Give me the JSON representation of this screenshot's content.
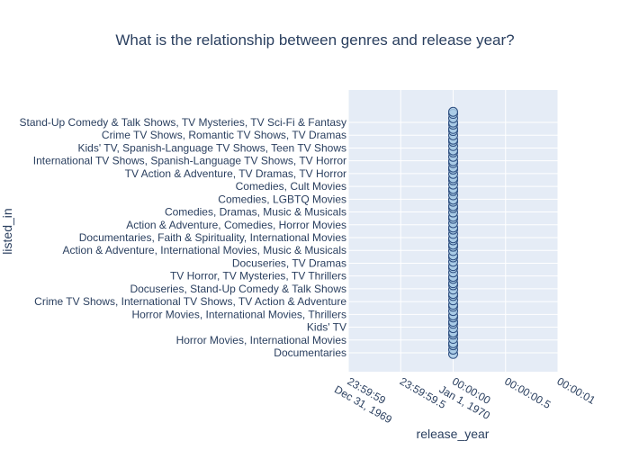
{
  "chart_data": {
    "type": "scatter",
    "title": "What is the relationship between genres and release year?",
    "xlabel": "release_year",
    "ylabel": "listed_in",
    "x_ticks": [
      {
        "value": -1,
        "line1": "23:59:59",
        "line2": "Dec 31, 1969"
      },
      {
        "value": -0.5,
        "line1": "23:59:59.5",
        "line2": ""
      },
      {
        "value": 0,
        "line1": "00:00:00",
        "line2": "Jan 1, 1970"
      },
      {
        "value": 0.5,
        "line1": "00:00:00.5",
        "line2": ""
      },
      {
        "value": 1,
        "line1": "00:00:01",
        "line2": ""
      }
    ],
    "xlim": [
      -1,
      1
    ],
    "categories": [
      "Documentaries",
      "Horror Movies, International Movies",
      "Kids' TV",
      "Horror Movies, International Movies, Thrillers",
      "Crime TV Shows, International TV Shows, TV Action & Adventure",
      "Docuseries, Stand-Up Comedy & Talk Shows",
      "TV Horror, TV Mysteries, TV Thrillers",
      "Docuseries, TV Dramas",
      "Action & Adventure, International Movies, Music & Musicals",
      "Documentaries, Faith & Spirituality, International Movies",
      "Action & Adventure, Comedies, Horror Movies",
      "Comedies, Dramas, Music & Musicals",
      "Comedies, LGBTQ Movies",
      "Comedies, Cult Movies",
      "TV Action & Adventure, TV Dramas, TV Horror",
      "International TV Shows, Spanish-Language TV Shows, TV Horror",
      "Kids' TV, Spanish-Language TV Shows, Teen TV Shows",
      "Crime TV Shows, Romantic TV Shows, TV Dramas",
      "Stand-Up Comedy & Talk Shows, TV Mysteries, TV Sci-Fi & Fantasy"
    ],
    "points_x": 0,
    "points_y_index_range": [
      0,
      18.9
    ],
    "point_count": 70,
    "marker_color": "#a9cbe6",
    "marker_edge": "#2b4c7e",
    "plot_bg": "#e5ecf6",
    "grid_color": "#ffffff",
    "grid": true
  }
}
